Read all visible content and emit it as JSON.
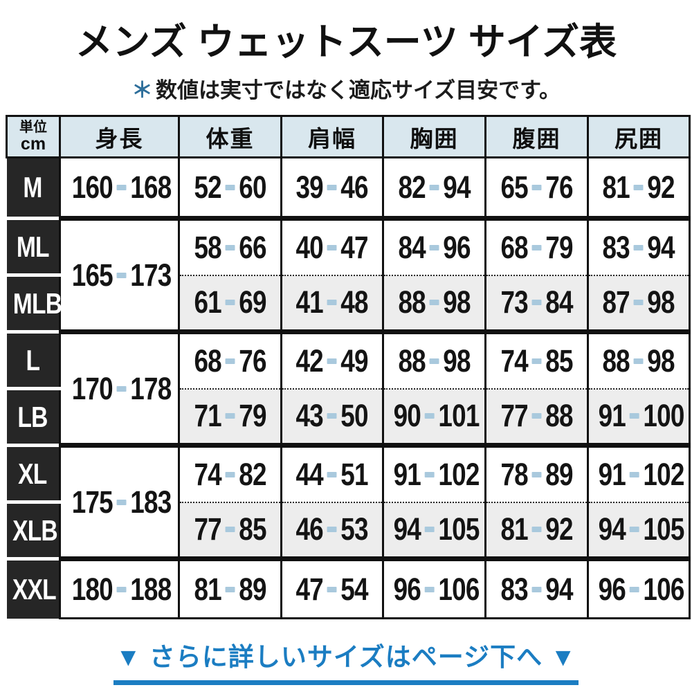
{
  "page": {
    "title": "メンズ ウェットスーツ サイズ表",
    "subtitle": {
      "marker": "＊",
      "text": "数値は実寸ではなく適応サイズ目安です。"
    },
    "footer": {
      "label": "▼ さらに詳しいサイズはページ下へ ▼"
    }
  },
  "table": {
    "unit": {
      "line1": "単位",
      "line2": "cm"
    },
    "columns": [
      "身長",
      "体重",
      "肩幅",
      "胸囲",
      "腹囲",
      "尻囲"
    ],
    "rows": [
      {
        "size": "M",
        "height": [
          "160",
          "168"
        ],
        "height_span": 1,
        "shaded": false,
        "group_start": true,
        "values": [
          [
            "52",
            "60"
          ],
          [
            "39",
            "46"
          ],
          [
            "82",
            "94"
          ],
          [
            "65",
            "76"
          ],
          [
            "81",
            "92"
          ]
        ]
      },
      {
        "size": "ML",
        "height": [
          "165",
          "173"
        ],
        "height_span": 2,
        "shaded": false,
        "group_start": true,
        "values": [
          [
            "58",
            "66"
          ],
          [
            "40",
            "47"
          ],
          [
            "84",
            "96"
          ],
          [
            "68",
            "79"
          ],
          [
            "83",
            "94"
          ]
        ]
      },
      {
        "size": "MLB",
        "height": null,
        "shaded": true,
        "group_start": false,
        "values": [
          [
            "61",
            "69"
          ],
          [
            "41",
            "48"
          ],
          [
            "88",
            "98"
          ],
          [
            "73",
            "84"
          ],
          [
            "87",
            "98"
          ]
        ]
      },
      {
        "size": "L",
        "height": [
          "170",
          "178"
        ],
        "height_span": 2,
        "shaded": false,
        "group_start": true,
        "values": [
          [
            "68",
            "76"
          ],
          [
            "42",
            "49"
          ],
          [
            "88",
            "98"
          ],
          [
            "74",
            "85"
          ],
          [
            "88",
            "98"
          ]
        ]
      },
      {
        "size": "LB",
        "height": null,
        "shaded": true,
        "group_start": false,
        "values": [
          [
            "71",
            "79"
          ],
          [
            "43",
            "50"
          ],
          [
            "90",
            "101"
          ],
          [
            "77",
            "88"
          ],
          [
            "91",
            "100"
          ]
        ]
      },
      {
        "size": "XL",
        "height": [
          "175",
          "183"
        ],
        "height_span": 2,
        "shaded": false,
        "group_start": true,
        "values": [
          [
            "74",
            "82"
          ],
          [
            "44",
            "51"
          ],
          [
            "91",
            "102"
          ],
          [
            "78",
            "89"
          ],
          [
            "91",
            "102"
          ]
        ]
      },
      {
        "size": "XLB",
        "height": null,
        "shaded": true,
        "group_start": false,
        "values": [
          [
            "77",
            "85"
          ],
          [
            "46",
            "53"
          ],
          [
            "94",
            "105"
          ],
          [
            "81",
            "92"
          ],
          [
            "94",
            "105"
          ]
        ]
      },
      {
        "size": "XXL",
        "height": [
          "180",
          "188"
        ],
        "height_span": 1,
        "shaded": false,
        "group_start": true,
        "values": [
          [
            "81",
            "89"
          ],
          [
            "47",
            "54"
          ],
          [
            "96",
            "106"
          ],
          [
            "83",
            "94"
          ],
          [
            "96",
            "106"
          ]
        ]
      }
    ]
  },
  "chart_data": {
    "type": "table",
    "title": "メンズ ウェットスーツ サイズ表",
    "note": "＊数値は実寸ではなく適応サイズ目安です。",
    "unit": "cm",
    "columns": [
      "サイズ",
      "身長",
      "体重",
      "肩幅",
      "胸囲",
      "腹囲",
      "尻囲"
    ],
    "rows": [
      [
        "M",
        "160-168",
        "52-60",
        "39-46",
        "82-94",
        "65-76",
        "81-92"
      ],
      [
        "ML",
        "165-173",
        "58-66",
        "40-47",
        "84-96",
        "68-79",
        "83-94"
      ],
      [
        "MLB",
        "165-173",
        "61-69",
        "41-48",
        "88-98",
        "73-84",
        "87-98"
      ],
      [
        "L",
        "170-178",
        "68-76",
        "42-49",
        "88-98",
        "74-85",
        "88-98"
      ],
      [
        "LB",
        "170-178",
        "71-79",
        "43-50",
        "90-101",
        "77-88",
        "91-100"
      ],
      [
        "XL",
        "175-183",
        "74-82",
        "44-51",
        "91-102",
        "78-89",
        "91-102"
      ],
      [
        "XLB",
        "175-183",
        "77-85",
        "46-53",
        "94-105",
        "81-92",
        "94-105"
      ],
      [
        "XXL",
        "180-188",
        "81-89",
        "47-54",
        "96-106",
        "83-94",
        "96-106"
      ]
    ],
    "footer_note": "▼ さらに詳しいサイズはページ下へ ▼"
  },
  "colors": {
    "accent_blue": "#1b7dc2",
    "asterisk_blue": "#2e6f9b",
    "dash_blue": "#a9c9dd",
    "header_bg": "#d9e7ee",
    "label_bg": "#262626",
    "shaded_row_bg": "#ededed"
  }
}
